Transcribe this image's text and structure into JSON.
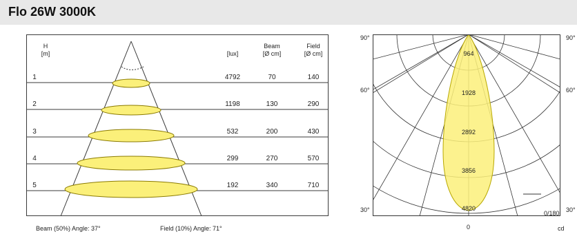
{
  "title": "Flo 26W 3000K",
  "table": {
    "col_h": "H",
    "col_h_unit": "[m]",
    "col_lux": "[lux]",
    "col_beam": "Beam",
    "col_beam_unit": "[Ø cm]",
    "col_field": "Field",
    "col_field_unit": "[Ø cm]",
    "rows": [
      {
        "h": "1",
        "lux": "4792",
        "beam": "70",
        "field": "140"
      },
      {
        "h": "2",
        "lux": "1198",
        "beam": "130",
        "field": "290"
      },
      {
        "h": "3",
        "lux": "532",
        "beam": "200",
        "field": "430"
      },
      {
        "h": "4",
        "lux": "299",
        "beam": "270",
        "field": "570"
      },
      {
        "h": "5",
        "lux": "192",
        "beam": "340",
        "field": "710"
      }
    ]
  },
  "footer": {
    "beam_angle": "Beam (50%) Angle: 37°",
    "field_angle": "Field (10%) Angle: 71°"
  },
  "polar": {
    "left_angles": [
      "90°",
      "60°",
      "30°"
    ],
    "right_angles": [
      "90°",
      "60°",
      "30°"
    ],
    "ring_labels": [
      "964",
      "1928",
      "2892",
      "3856",
      "4820"
    ],
    "bottom_label": "0",
    "unit_label": "cd",
    "ratio_label": "0/180"
  },
  "colors": {
    "fill": "#fbf07a",
    "stroke": "#b8a800",
    "title_bg": "#e8e8e8"
  }
}
